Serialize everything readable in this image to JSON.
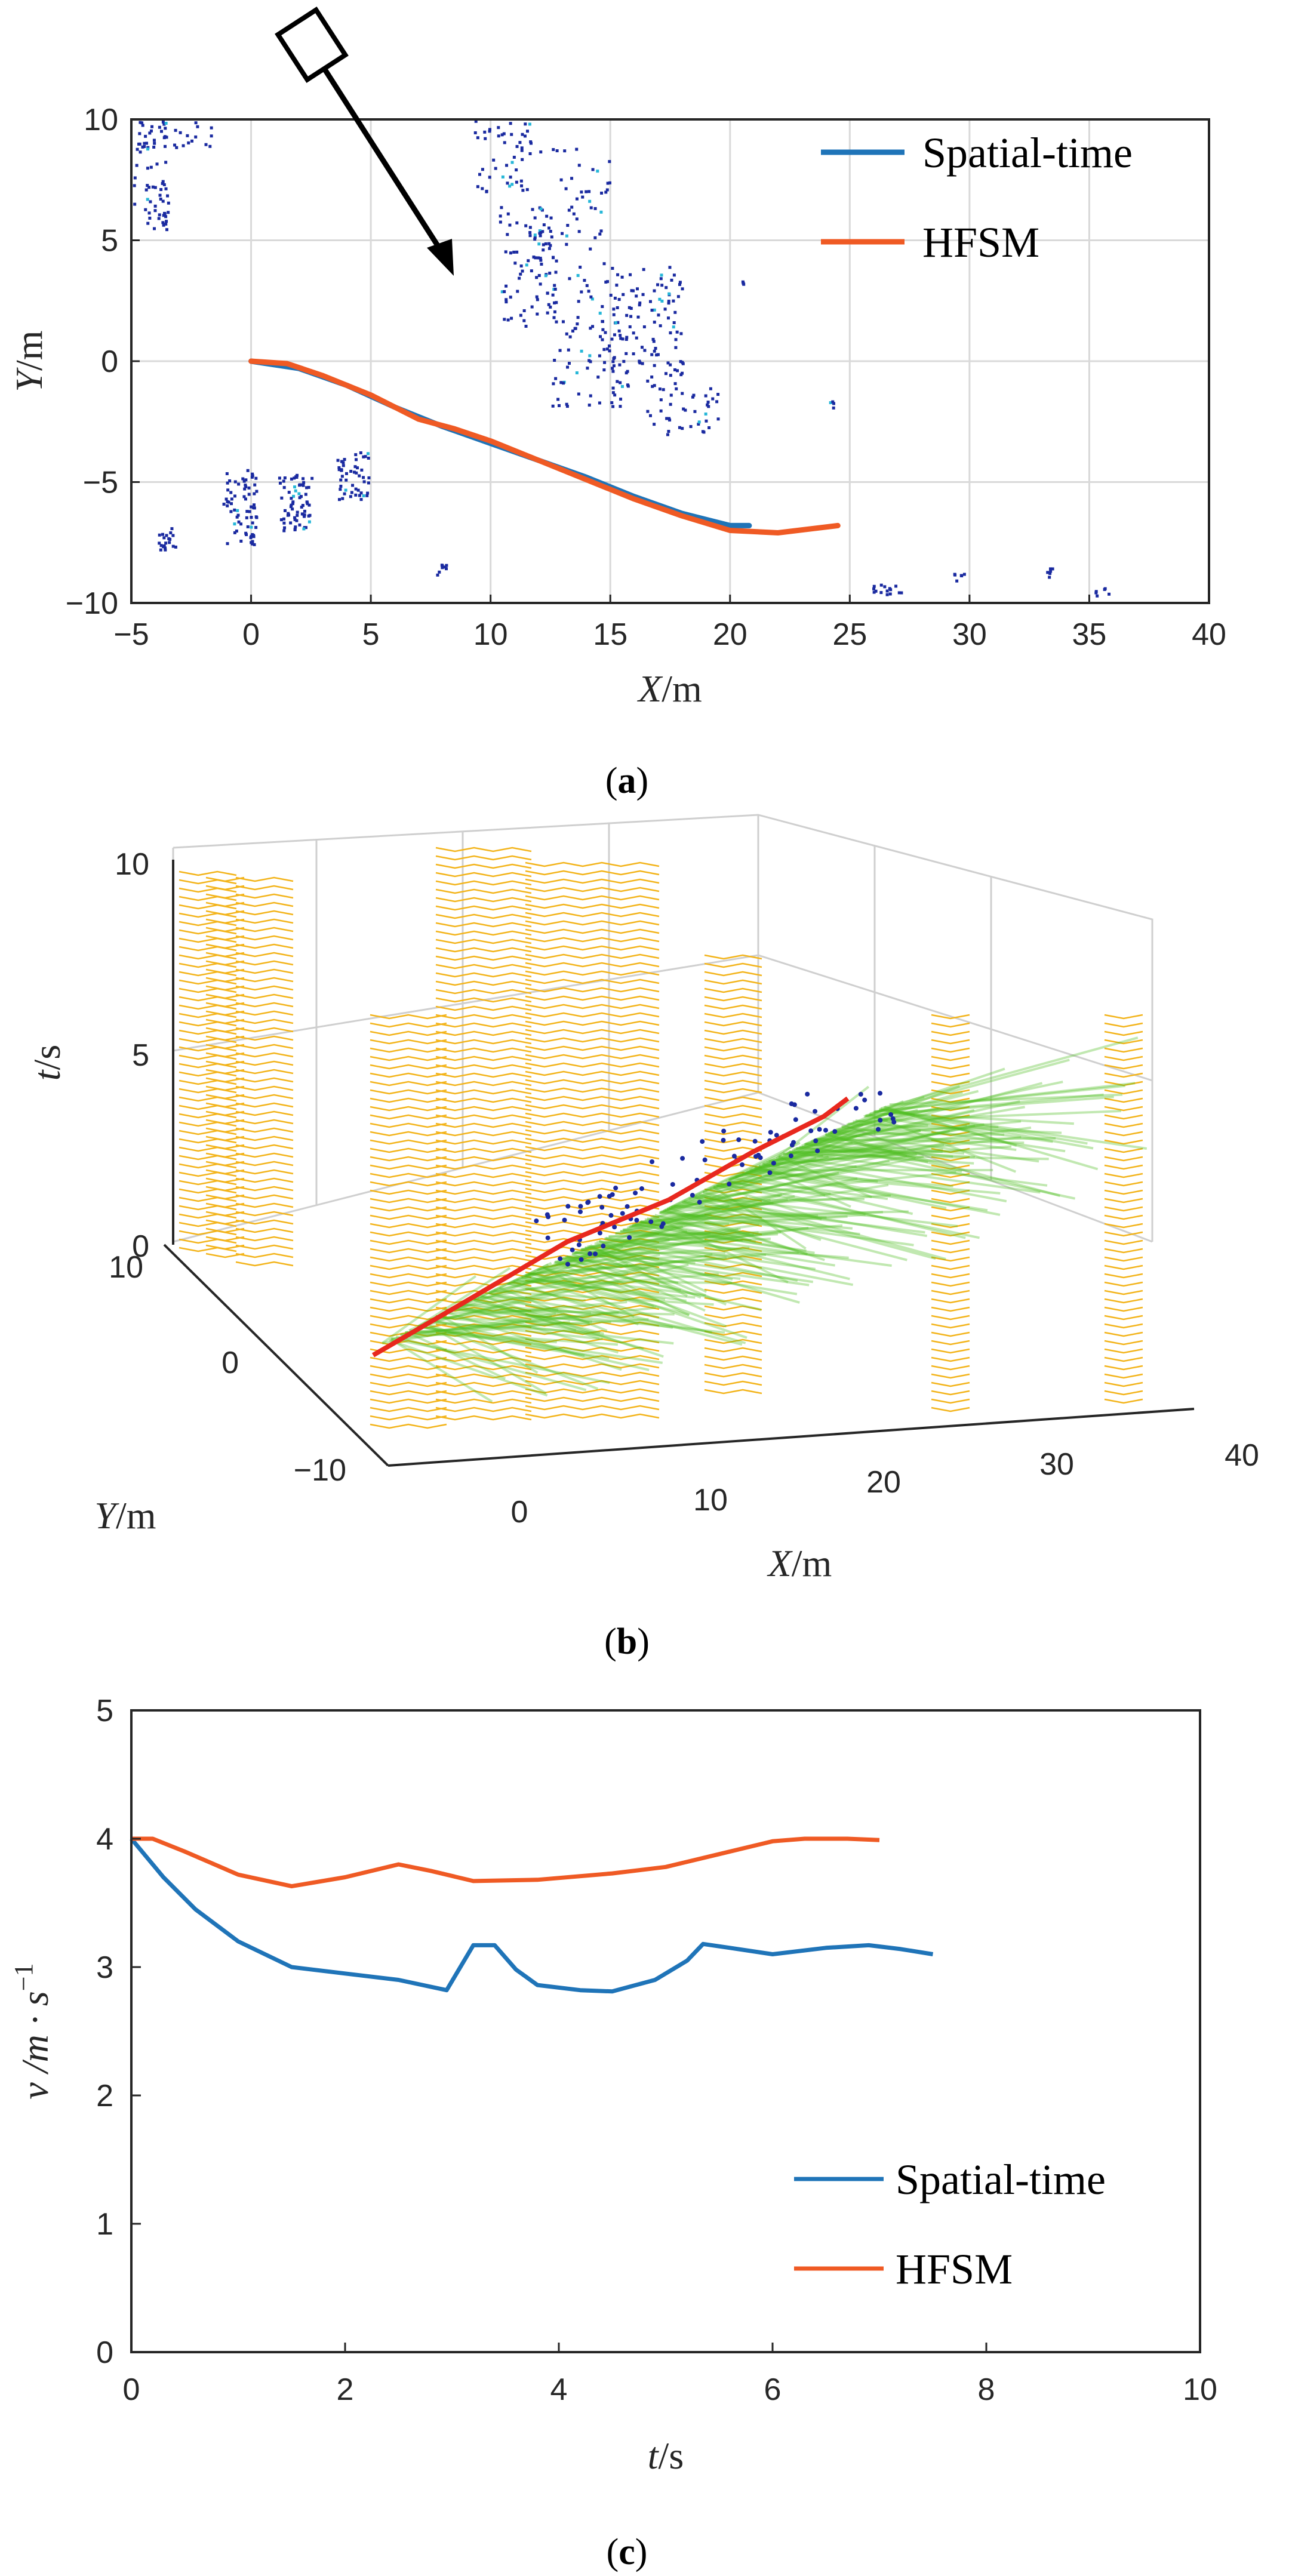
{
  "colors": {
    "spatial_time": "#1f74b8",
    "hfsm": "#ef5a24",
    "points": "#1a2aa0",
    "points_light": "#27b7d8",
    "forest": "#4cbe1f",
    "yellow": "#f3b41b",
    "red": "#e8281e"
  },
  "chart_data": [
    {
      "panel": "a",
      "type": "line",
      "xlabel_var": "X",
      "xlabel_unit": "/m",
      "ylabel_var": "Y",
      "ylabel_unit": "/m",
      "xlim": [
        -5,
        40
      ],
      "ylim": [
        -10,
        10
      ],
      "xticks": [
        "−5",
        "0",
        "5",
        "10",
        "15",
        "20",
        "25",
        "30",
        "35",
        "40"
      ],
      "yticks": [
        "10",
        "5",
        "0",
        "−5",
        "−10"
      ],
      "grid": true,
      "legend_position": "top-right",
      "series": [
        {
          "name": "Spatial-time",
          "points": [
            [
              0,
              0
            ],
            [
              2,
              -0.3
            ],
            [
              4,
              -1.0
            ],
            [
              6,
              -1.9
            ],
            [
              8,
              -2.7
            ],
            [
              10,
              -3.4
            ],
            [
              12,
              -4.1
            ],
            [
              14,
              -4.8
            ],
            [
              16,
              -5.6
            ],
            [
              18,
              -6.3
            ],
            [
              20,
              -6.8
            ],
            [
              20.8,
              -6.8
            ]
          ]
        },
        {
          "name": "HFSM",
          "points": [
            [
              0,
              0
            ],
            [
              1.5,
              -0.1
            ],
            [
              3,
              -0.6
            ],
            [
              5,
              -1.4
            ],
            [
              7,
              -2.4
            ],
            [
              8.5,
              -2.8
            ],
            [
              10,
              -3.3
            ],
            [
              12,
              -4.1
            ],
            [
              14,
              -4.9
            ],
            [
              16,
              -5.7
            ],
            [
              18,
              -6.4
            ],
            [
              20,
              -7.0
            ],
            [
              22,
              -7.1
            ],
            [
              24.5,
              -6.8
            ]
          ]
        }
      ]
    },
    {
      "panel": "b",
      "type": "scatter",
      "xlabel_var": "X",
      "xlabel_unit": "/m",
      "ylabel_var": "Y",
      "ylabel_unit": "/m",
      "zlabel_var": "t",
      "zlabel_unit": "/s",
      "xticks": [
        "0",
        "10",
        "20",
        "30",
        "40"
      ],
      "yticks": [
        "10",
        "0",
        "−10"
      ],
      "zticks": [
        "10",
        "5",
        "0"
      ]
    },
    {
      "panel": "c",
      "type": "line",
      "xlabel_var": "t",
      "xlabel_unit": "/s",
      "ylabel_text": "v /m · s",
      "ylabel_sup": "−1",
      "xlim": [
        0,
        10
      ],
      "ylim": [
        0,
        5
      ],
      "xticks": [
        "0",
        "2",
        "4",
        "6",
        "8",
        "10"
      ],
      "yticks": [
        "5",
        "4",
        "3",
        "2",
        "1",
        "0"
      ],
      "grid": false,
      "legend_position": "bottom-right",
      "series": [
        {
          "name": "Spatial-time",
          "points": [
            [
              0,
              4.0
            ],
            [
              0.3,
              3.7
            ],
            [
              0.6,
              3.45
            ],
            [
              1.0,
              3.2
            ],
            [
              1.5,
              3.0
            ],
            [
              2.0,
              2.95
            ],
            [
              2.5,
              2.9
            ],
            [
              2.95,
              2.82
            ],
            [
              3.2,
              3.17
            ],
            [
              3.4,
              3.17
            ],
            [
              3.6,
              2.98
            ],
            [
              3.8,
              2.86
            ],
            [
              4.2,
              2.82
            ],
            [
              4.5,
              2.81
            ],
            [
              4.9,
              2.9
            ],
            [
              5.2,
              3.05
            ],
            [
              5.35,
              3.18
            ],
            [
              5.6,
              3.15
            ],
            [
              6.0,
              3.1
            ],
            [
              6.5,
              3.15
            ],
            [
              6.9,
              3.17
            ],
            [
              7.2,
              3.14
            ],
            [
              7.5,
              3.1
            ]
          ]
        },
        {
          "name": "HFSM",
          "points": [
            [
              0,
              4.0
            ],
            [
              0.2,
              4.0
            ],
            [
              0.5,
              3.9
            ],
            [
              1.0,
              3.72
            ],
            [
              1.5,
              3.63
            ],
            [
              2.0,
              3.7
            ],
            [
              2.5,
              3.8
            ],
            [
              2.8,
              3.75
            ],
            [
              3.2,
              3.67
            ],
            [
              3.8,
              3.68
            ],
            [
              4.5,
              3.73
            ],
            [
              5.0,
              3.78
            ],
            [
              5.5,
              3.88
            ],
            [
              6.0,
              3.98
            ],
            [
              6.3,
              4.0
            ],
            [
              6.7,
              4.0
            ],
            [
              7.0,
              3.99
            ]
          ]
        }
      ]
    }
  ],
  "captions": {
    "a": "a",
    "b": "b",
    "c": "c"
  }
}
